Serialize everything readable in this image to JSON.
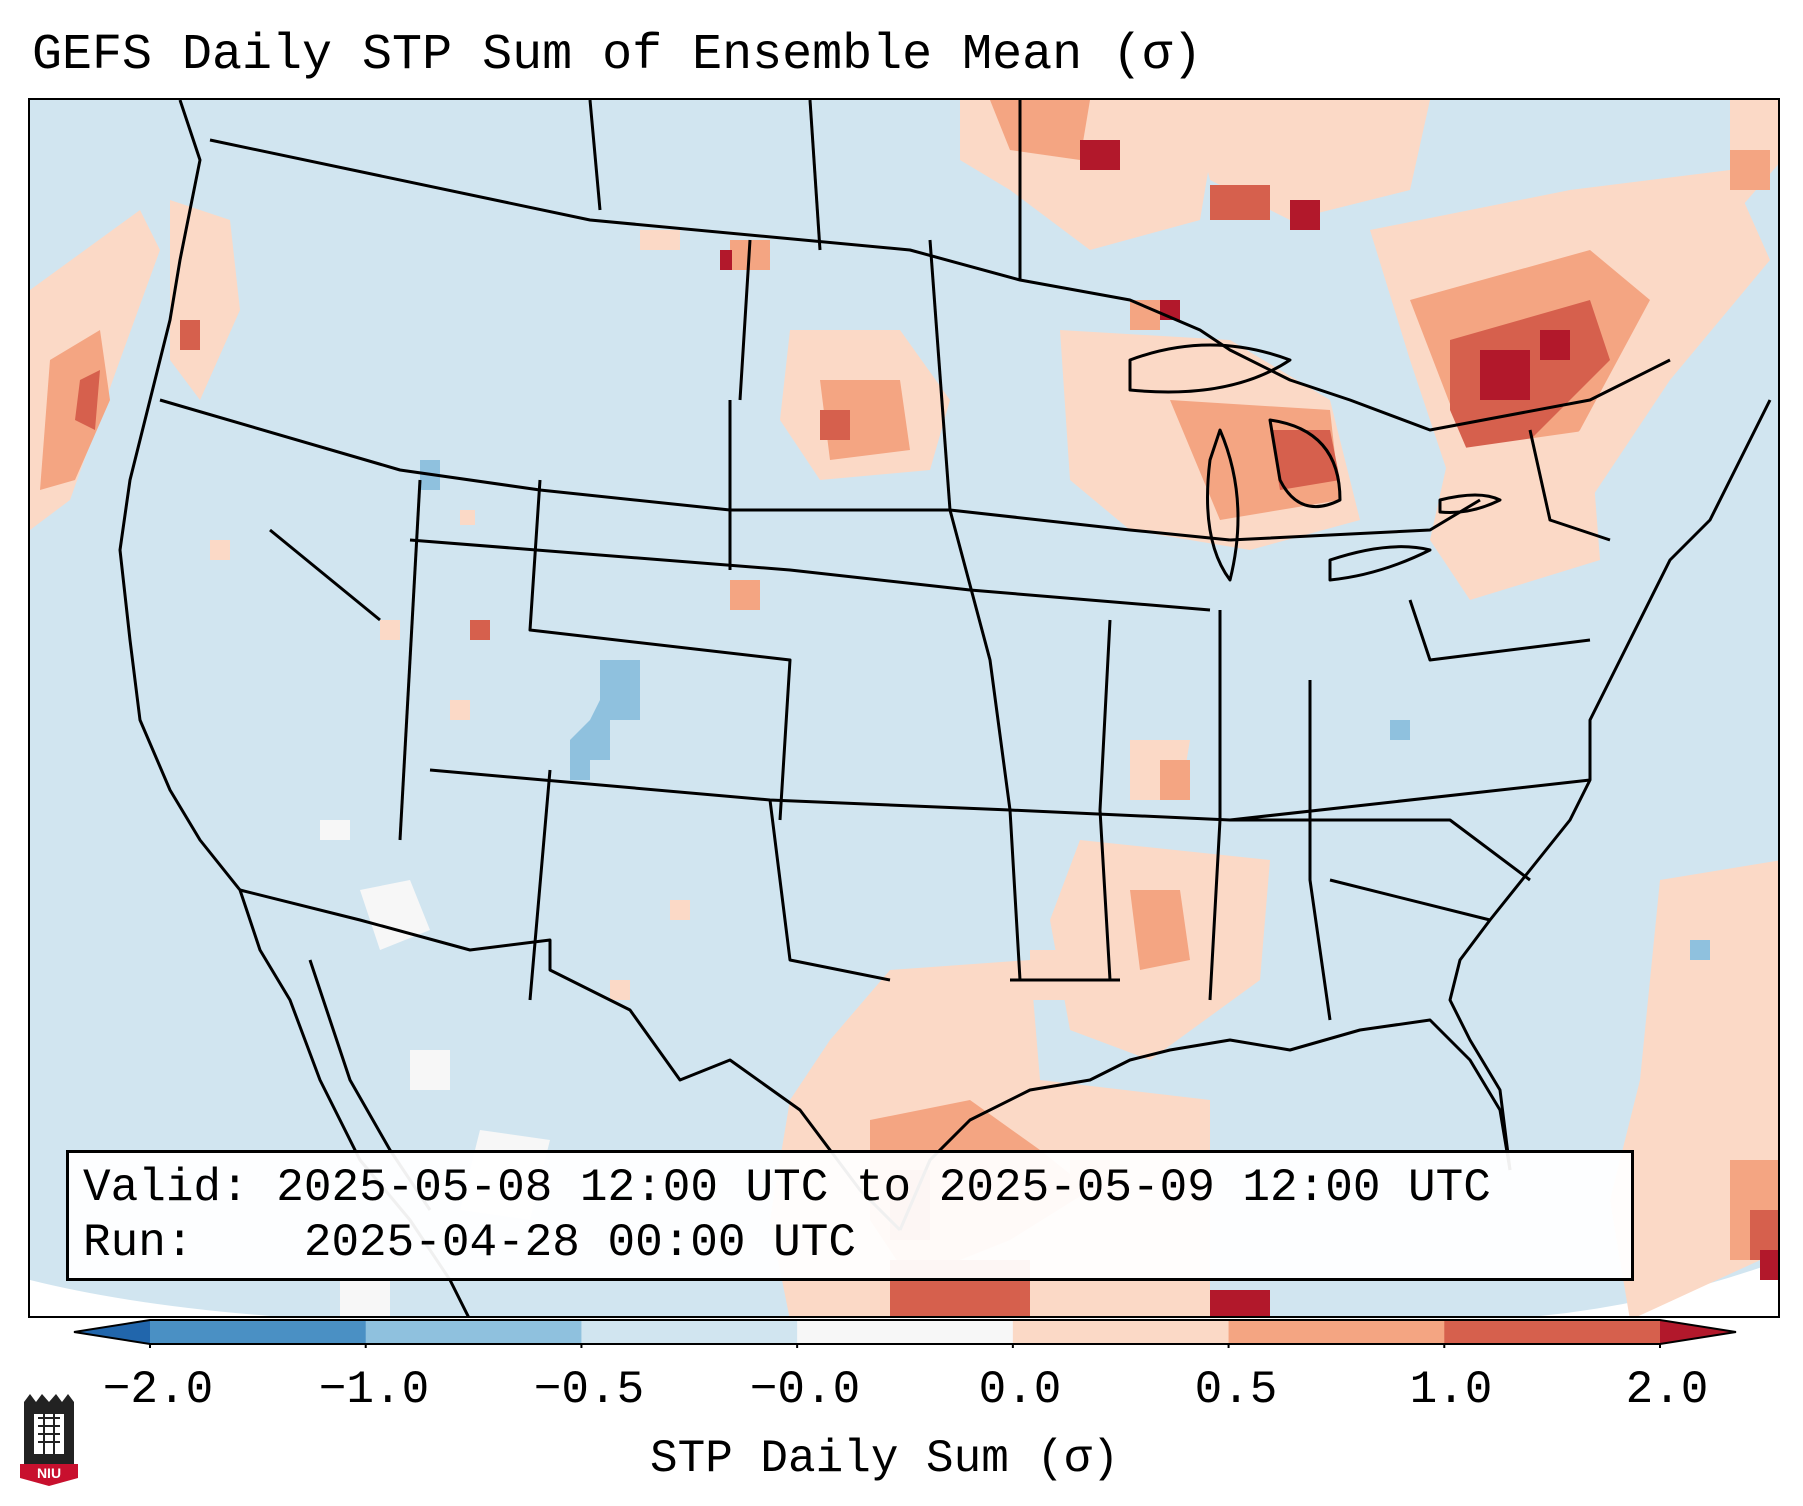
{
  "title": "GEFS Daily STP Sum of Ensemble Mean (σ)",
  "info": {
    "valid_label": "Valid:",
    "valid_value": "2025-05-08 12:00 UTC to 2025-05-09 12:00 UTC",
    "run_label": "Run:",
    "run_value": "2025-04-28 00:00 UTC"
  },
  "colorbar": {
    "label": "STP Daily Sum (σ)",
    "ticks": [
      "−2.0",
      "−1.0",
      "−0.5",
      "−0.0",
      "0.0",
      "0.5",
      "1.0",
      "2.0"
    ],
    "bin_colors": [
      "#4a90c4",
      "#8fc1de",
      "#d1e5f0",
      "#f7f7f7",
      "#fbd9c6",
      "#f4a582",
      "#d6604d"
    ],
    "extend_low_color": "#2166ac",
    "extend_high_color": "#b2182b"
  },
  "map": {
    "background_color": "#d1e5f0",
    "border_color": "#000000"
  },
  "logo": {
    "text": "NIU",
    "color": "#c8102e"
  }
}
